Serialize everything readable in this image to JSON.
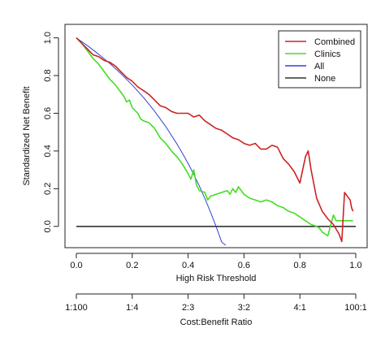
{
  "chart_data": {
    "type": "line",
    "xlabel": "High Risk Threshold",
    "ylabel": "Standardized Net Benefit",
    "xlim": [
      0,
      1
    ],
    "ylim": [
      -0.1,
      1.05
    ],
    "xticks": [
      "0.0",
      "0.2",
      "0.4",
      "0.6",
      "0.8",
      "1.0"
    ],
    "yticks": [
      "0.0",
      "0.2",
      "0.4",
      "0.6",
      "0.8",
      "1.0"
    ],
    "secondary_axis": {
      "label": "Cost:Benefit Ratio",
      "ticks": [
        {
          "x": 0.0,
          "label": "1:100"
        },
        {
          "x": 0.2,
          "label": "1:4"
        },
        {
          "x": 0.4,
          "label": "2:3"
        },
        {
          "x": 0.6,
          "label": "3:2"
        },
        {
          "x": 0.8,
          "label": "4:1"
        },
        {
          "x": 1.0,
          "label": "100:1"
        }
      ]
    },
    "legend": {
      "position": "top-right",
      "items": [
        "Combined",
        "Clinics",
        "All",
        "None"
      ]
    },
    "grid": false,
    "series": [
      {
        "name": "Combined",
        "color": "#cc2222",
        "points": [
          [
            0.0,
            1.0
          ],
          [
            0.02,
            0.97
          ],
          [
            0.04,
            0.94
          ],
          [
            0.06,
            0.91
          ],
          [
            0.08,
            0.9
          ],
          [
            0.1,
            0.88
          ],
          [
            0.12,
            0.87
          ],
          [
            0.14,
            0.85
          ],
          [
            0.16,
            0.82
          ],
          [
            0.18,
            0.79
          ],
          [
            0.2,
            0.77
          ],
          [
            0.22,
            0.74
          ],
          [
            0.24,
            0.72
          ],
          [
            0.26,
            0.7
          ],
          [
            0.28,
            0.67
          ],
          [
            0.3,
            0.64
          ],
          [
            0.32,
            0.63
          ],
          [
            0.34,
            0.61
          ],
          [
            0.36,
            0.6
          ],
          [
            0.38,
            0.6
          ],
          [
            0.4,
            0.6
          ],
          [
            0.42,
            0.58
          ],
          [
            0.44,
            0.59
          ],
          [
            0.46,
            0.56
          ],
          [
            0.48,
            0.54
          ],
          [
            0.5,
            0.52
          ],
          [
            0.52,
            0.51
          ],
          [
            0.54,
            0.49
          ],
          [
            0.56,
            0.47
          ],
          [
            0.58,
            0.46
          ],
          [
            0.6,
            0.44
          ],
          [
            0.62,
            0.43
          ],
          [
            0.64,
            0.44
          ],
          [
            0.66,
            0.41
          ],
          [
            0.68,
            0.41
          ],
          [
            0.7,
            0.43
          ],
          [
            0.72,
            0.42
          ],
          [
            0.74,
            0.36
          ],
          [
            0.76,
            0.33
          ],
          [
            0.78,
            0.29
          ],
          [
            0.8,
            0.23
          ],
          [
            0.82,
            0.37
          ],
          [
            0.83,
            0.4
          ],
          [
            0.84,
            0.3
          ],
          [
            0.86,
            0.15
          ],
          [
            0.88,
            0.08
          ],
          [
            0.9,
            0.04
          ],
          [
            0.92,
            0.01
          ],
          [
            0.94,
            -0.04
          ],
          [
            0.95,
            -0.08
          ],
          [
            0.96,
            0.18
          ],
          [
            0.98,
            0.14
          ],
          [
            0.985,
            0.1
          ],
          [
            0.99,
            0.08
          ]
        ]
      },
      {
        "name": "Clinics",
        "color": "#44dd22",
        "points": [
          [
            0.0,
            1.0
          ],
          [
            0.02,
            0.97
          ],
          [
            0.04,
            0.93
          ],
          [
            0.06,
            0.89
          ],
          [
            0.08,
            0.86
          ],
          [
            0.1,
            0.82
          ],
          [
            0.12,
            0.78
          ],
          [
            0.14,
            0.75
          ],
          [
            0.16,
            0.71
          ],
          [
            0.17,
            0.69
          ],
          [
            0.18,
            0.66
          ],
          [
            0.19,
            0.67
          ],
          [
            0.2,
            0.63
          ],
          [
            0.22,
            0.6
          ],
          [
            0.23,
            0.57
          ],
          [
            0.24,
            0.56
          ],
          [
            0.26,
            0.55
          ],
          [
            0.28,
            0.52
          ],
          [
            0.3,
            0.47
          ],
          [
            0.32,
            0.44
          ],
          [
            0.34,
            0.4
          ],
          [
            0.36,
            0.37
          ],
          [
            0.38,
            0.33
          ],
          [
            0.4,
            0.28
          ],
          [
            0.41,
            0.25
          ],
          [
            0.42,
            0.3
          ],
          [
            0.43,
            0.22
          ],
          [
            0.44,
            0.19
          ],
          [
            0.46,
            0.18
          ],
          [
            0.47,
            0.14
          ],
          [
            0.48,
            0.16
          ],
          [
            0.5,
            0.17
          ],
          [
            0.52,
            0.18
          ],
          [
            0.54,
            0.19
          ],
          [
            0.55,
            0.17
          ],
          [
            0.56,
            0.2
          ],
          [
            0.57,
            0.18
          ],
          [
            0.58,
            0.21
          ],
          [
            0.6,
            0.17
          ],
          [
            0.62,
            0.15
          ],
          [
            0.64,
            0.14
          ],
          [
            0.66,
            0.13
          ],
          [
            0.68,
            0.14
          ],
          [
            0.7,
            0.13
          ],
          [
            0.72,
            0.11
          ],
          [
            0.74,
            0.1
          ],
          [
            0.75,
            0.09
          ],
          [
            0.76,
            0.08
          ],
          [
            0.78,
            0.07
          ],
          [
            0.8,
            0.05
          ],
          [
            0.82,
            0.03
          ],
          [
            0.84,
            0.01
          ],
          [
            0.86,
            0.0
          ],
          [
            0.87,
            -0.01
          ],
          [
            0.88,
            -0.03
          ],
          [
            0.9,
            -0.05
          ],
          [
            0.92,
            0.06
          ],
          [
            0.93,
            0.03
          ],
          [
            0.95,
            0.03
          ],
          [
            0.97,
            0.03
          ],
          [
            0.99,
            0.03
          ]
        ]
      },
      {
        "name": "All",
        "color": "#3344cc",
        "points": [
          [
            0.0,
            1.0
          ],
          [
            0.04,
            0.9583
          ],
          [
            0.08,
            0.913
          ],
          [
            0.12,
            0.8636
          ],
          [
            0.16,
            0.8095
          ],
          [
            0.2,
            0.75
          ],
          [
            0.24,
            0.6842
          ],
          [
            0.28,
            0.6111
          ],
          [
            0.32,
            0.5294
          ],
          [
            0.36,
            0.4375
          ],
          [
            0.38,
            0.3871
          ],
          [
            0.4,
            0.3333
          ],
          [
            0.42,
            0.2759
          ],
          [
            0.44,
            0.2143
          ],
          [
            0.46,
            0.1481
          ],
          [
            0.48,
            0.0769
          ],
          [
            0.5,
            0.0
          ],
          [
            0.52,
            -0.0833
          ],
          [
            0.535,
            -0.1
          ]
        ]
      },
      {
        "name": "None",
        "color": "#333333",
        "points": [
          [
            0.0,
            0.0
          ],
          [
            1.0,
            0.0
          ]
        ]
      }
    ]
  }
}
